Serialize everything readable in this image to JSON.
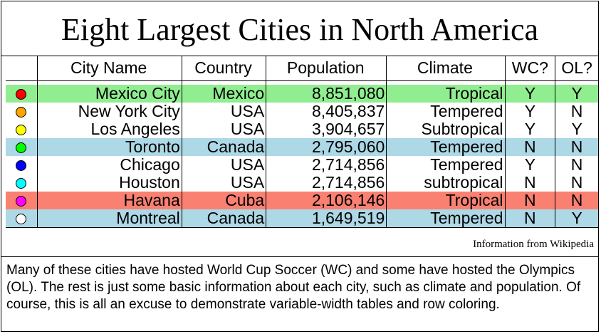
{
  "title": "Eight Largest Cities in North America",
  "columns": [
    "City Name",
    "Country",
    "Population",
    "Climate",
    "WC?",
    "OL?"
  ],
  "rows": [
    {
      "city": "Mexico City",
      "country": "Mexico",
      "population": "8,851,080",
      "climate": "Tropical",
      "wc": "Y",
      "ol": "Y",
      "dot_color": "#ff0000",
      "row_color": "#90ee90"
    },
    {
      "city": "New York City",
      "country": "USA",
      "population": "8,405,837",
      "climate": "Tempered",
      "wc": "Y",
      "ol": "N",
      "dot_color": "#ffa500",
      "row_color": "#ffffff"
    },
    {
      "city": "Los Angeles",
      "country": "USA",
      "population": "3,904,657",
      "climate": "Subtropical",
      "wc": "Y",
      "ol": "Y",
      "dot_color": "#ffff00",
      "row_color": "#ffffff"
    },
    {
      "city": "Toronto",
      "country": "Canada",
      "population": "2,795,060",
      "climate": "Tempered",
      "wc": "N",
      "ol": "N",
      "dot_color": "#00ff00",
      "row_color": "#add8e6"
    },
    {
      "city": "Chicago",
      "country": "USA",
      "population": "2,714,856",
      "climate": "Tempered",
      "wc": "Y",
      "ol": "N",
      "dot_color": "#0000ff",
      "row_color": "#ffffff"
    },
    {
      "city": "Houston",
      "country": "USA",
      "population": "2,714,856",
      "climate": "subtropical",
      "wc": "N",
      "ol": "N",
      "dot_color": "#00ffff",
      "row_color": "#ffffff"
    },
    {
      "city": "Havana",
      "country": "Cuba",
      "population": "2,106,146",
      "climate": "Tropical",
      "wc": "N",
      "ol": "N",
      "dot_color": "#ff00ff",
      "row_color": "#fa8072"
    },
    {
      "city": "Montreal",
      "country": "Canada",
      "population": "1,649,519",
      "climate": "Tempered",
      "wc": "N",
      "ol": "Y",
      "dot_color": "#ffffff",
      "row_color": "#add8e6"
    }
  ],
  "source": "Information from Wikipedia",
  "note": "Many of these cities have hosted World Cup Soccer (WC) and some have hosted the Olympics (OL).  The rest is just some basic information about each city, such as climate and population.  Of course, this is all an excuse to demonstrate variable-width tables and row coloring."
}
